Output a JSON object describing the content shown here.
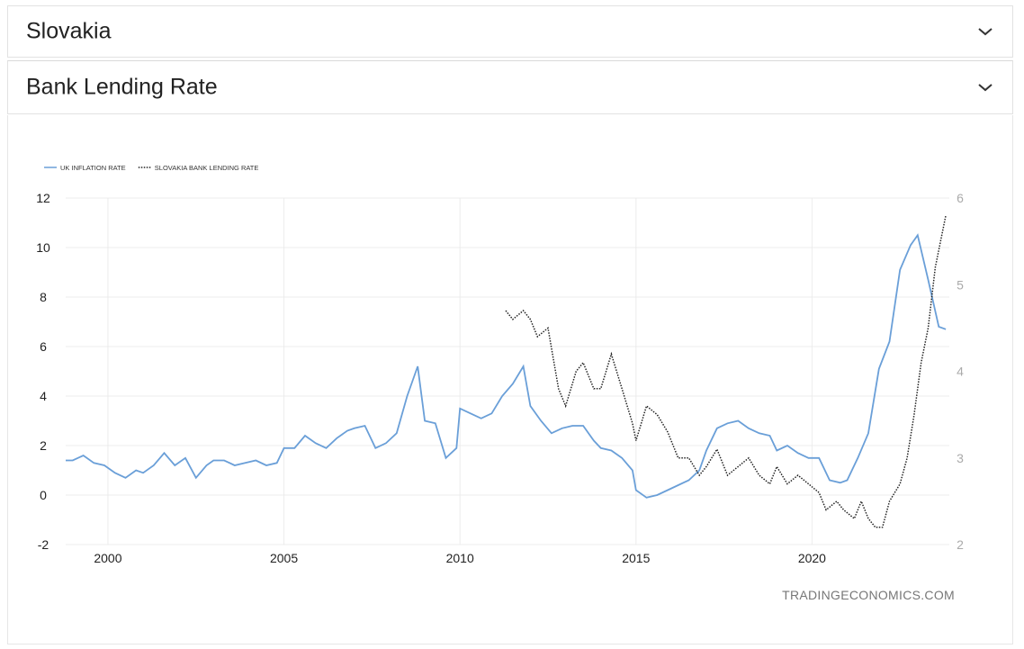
{
  "panels": [
    {
      "title": "Slovakia"
    },
    {
      "title": "Bank Lending Rate"
    }
  ],
  "icons": {
    "expand": "chevron-down-icon"
  },
  "colors": {
    "inflation": "#6a9fd8",
    "lending": "#222222",
    "grid": "#ececec"
  },
  "watermark": "TRADINGECONOMICS.COM",
  "chart_data": {
    "type": "line",
    "legend": [
      {
        "name": "UK INFLATION RATE",
        "style": "solid",
        "color": "#6a9fd8"
      },
      {
        "name": "SLOVAKIA BANK LENDING RATE",
        "style": "dotted",
        "color": "#222222"
      }
    ],
    "x_ticks": [
      "2000",
      "2005",
      "2010",
      "2015",
      "2020"
    ],
    "xlim": [
      1998.8,
      2023.9
    ],
    "y_left_ticks": [
      "12",
      "10",
      "8",
      "6",
      "4",
      "2",
      "0",
      "-2"
    ],
    "ylim_left": [
      -2,
      12
    ],
    "y_right_ticks": [
      "6",
      "5",
      "4",
      "3",
      "2"
    ],
    "ylim_right": [
      2,
      6
    ],
    "grid": true,
    "series": [
      {
        "name": "UK INFLATION RATE",
        "axis": "left",
        "x": [
          1998.8,
          1999.0,
          1999.3,
          1999.6,
          1999.9,
          2000.2,
          2000.5,
          2000.8,
          2001.0,
          2001.3,
          2001.6,
          2001.9,
          2002.2,
          2002.5,
          2002.8,
          2003.0,
          2003.3,
          2003.6,
          2003.9,
          2004.2,
          2004.5,
          2004.8,
          2005.0,
          2005.3,
          2005.6,
          2005.9,
          2006.2,
          2006.5,
          2006.8,
          2007.0,
          2007.3,
          2007.6,
          2007.9,
          2008.2,
          2008.5,
          2008.8,
          2009.0,
          2009.3,
          2009.6,
          2009.9,
          2010.0,
          2010.3,
          2010.6,
          2010.9,
          2011.2,
          2011.5,
          2011.8,
          2012.0,
          2012.3,
          2012.6,
          2012.9,
          2013.2,
          2013.5,
          2013.8,
          2014.0,
          2014.3,
          2014.6,
          2014.9,
          2015.0,
          2015.3,
          2015.6,
          2015.9,
          2016.2,
          2016.5,
          2016.8,
          2017.0,
          2017.3,
          2017.6,
          2017.9,
          2018.2,
          2018.5,
          2018.8,
          2019.0,
          2019.3,
          2019.6,
          2019.9,
          2020.2,
          2020.5,
          2020.8,
          2021.0,
          2021.3,
          2021.6,
          2021.9,
          2022.2,
          2022.5,
          2022.8,
          2023.0,
          2023.3,
          2023.6,
          2023.8
        ],
        "values": [
          1.4,
          1.4,
          1.6,
          1.3,
          1.2,
          0.9,
          0.7,
          1.0,
          0.9,
          1.2,
          1.7,
          1.2,
          1.5,
          0.7,
          1.2,
          1.4,
          1.4,
          1.2,
          1.3,
          1.4,
          1.2,
          1.3,
          1.9,
          1.9,
          2.4,
          2.1,
          1.9,
          2.3,
          2.6,
          2.7,
          2.8,
          1.9,
          2.1,
          2.5,
          4.0,
          5.2,
          3.0,
          2.9,
          1.5,
          1.9,
          3.5,
          3.3,
          3.1,
          3.3,
          4.0,
          4.5,
          5.2,
          3.6,
          3.0,
          2.5,
          2.7,
          2.8,
          2.8,
          2.2,
          1.9,
          1.8,
          1.5,
          1.0,
          0.2,
          -0.1,
          0.0,
          0.2,
          0.4,
          0.6,
          1.0,
          1.8,
          2.7,
          2.9,
          3.0,
          2.7,
          2.5,
          2.4,
          1.8,
          2.0,
          1.7,
          1.5,
          1.5,
          0.6,
          0.5,
          0.6,
          1.5,
          2.5,
          5.1,
          6.2,
          9.1,
          10.1,
          10.5,
          8.7,
          6.8,
          6.7
        ]
      },
      {
        "name": "SLOVAKIA BANK LENDING RATE",
        "axis": "right",
        "x": [
          2011.3,
          2011.5,
          2011.8,
          2012.0,
          2012.2,
          2012.5,
          2012.8,
          2013.0,
          2013.3,
          2013.5,
          2013.8,
          2014.0,
          2014.3,
          2014.6,
          2014.9,
          2015.0,
          2015.3,
          2015.6,
          2015.9,
          2016.2,
          2016.5,
          2016.8,
          2017.0,
          2017.3,
          2017.6,
          2017.9,
          2018.2,
          2018.5,
          2018.8,
          2019.0,
          2019.3,
          2019.6,
          2019.9,
          2020.2,
          2020.4,
          2020.7,
          2020.9,
          2021.2,
          2021.4,
          2021.6,
          2021.8,
          2022.0,
          2022.2,
          2022.5,
          2022.7,
          2022.9,
          2023.1,
          2023.3,
          2023.5,
          2023.8
        ],
        "values": [
          4.7,
          4.6,
          4.7,
          4.6,
          4.4,
          4.5,
          3.8,
          3.6,
          4.0,
          4.1,
          3.8,
          3.8,
          4.2,
          3.8,
          3.4,
          3.2,
          3.6,
          3.5,
          3.3,
          3.0,
          3.0,
          2.8,
          2.9,
          3.1,
          2.8,
          2.9,
          3.0,
          2.8,
          2.7,
          2.9,
          2.7,
          2.8,
          2.7,
          2.6,
          2.4,
          2.5,
          2.4,
          2.3,
          2.5,
          2.3,
          2.2,
          2.2,
          2.5,
          2.7,
          3.0,
          3.5,
          4.1,
          4.5,
          5.2,
          5.8
        ]
      }
    ]
  }
}
